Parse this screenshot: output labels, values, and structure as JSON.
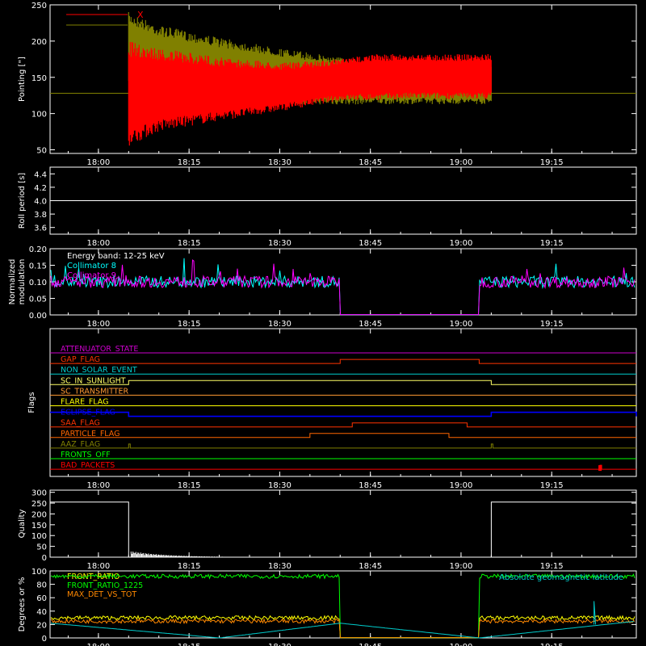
{
  "chart_data": [
    {
      "type": "line",
      "ylabel": "Pointing [\"]",
      "ylim": [
        45,
        250
      ],
      "yticks": [
        50,
        100,
        150,
        200,
        250
      ],
      "xticks": [
        "18:00",
        "18:15",
        "18:30",
        "18:45",
        "19:00",
        "19:15"
      ],
      "legend": [
        "X",
        "Y"
      ],
      "legend_placement": "top-left",
      "baseline": 128,
      "series": [
        {
          "name": "X",
          "color": "#ff0000",
          "envelope": {
            "t": [
              "18:05",
              "18:10",
              "18:20",
              "18:30",
              "18:40",
              "18:45",
              "18:52",
              "19:00",
              "19:05"
            ],
            "upper": [
              200,
              190,
              178,
              170,
              175,
              182,
              182,
              182,
              182
            ],
            "lower": [
              55,
              75,
              90,
              103,
              118,
              118,
              120,
              120,
              120
            ]
          }
        },
        {
          "name": "Y",
          "color": "#808000",
          "envelope": {
            "t": [
              "18:05",
              "18:10",
              "18:20",
              "18:30",
              "18:40",
              "18:45",
              "18:52",
              "19:00",
              "19:05"
            ],
            "upper": [
              240,
              222,
              205,
              190,
              178,
              172,
              170,
              170,
              170
            ],
            "lower": [
              130,
              120,
              115,
              113,
              112,
              113,
              113,
              113,
              113
            ]
          }
        }
      ]
    },
    {
      "type": "line",
      "ylabel": "Roll period [s]",
      "ylim": [
        3.5,
        4.5
      ],
      "yticks": [
        "3.6",
        "3.8",
        "4.0",
        "4.2",
        "4.4"
      ],
      "xticks": [
        "18:00",
        "18:15",
        "18:30",
        "18:45",
        "19:00",
        "19:15"
      ],
      "series": [
        {
          "color": "#ffffff",
          "x": [
            "17:52",
            "19:29"
          ],
          "y": [
            4.0,
            4.0
          ]
        }
      ]
    },
    {
      "type": "line",
      "ylabel": [
        "Normalized",
        "modulation"
      ],
      "ylim": [
        0,
        0.2
      ],
      "yticks": [
        "0.00",
        "0.05",
        "0.10",
        "0.15",
        "0.20"
      ],
      "xticks": [
        "18:00",
        "18:15",
        "18:30",
        "18:45",
        "19:00",
        "19:15"
      ],
      "legend_placement": "top-left",
      "annotation": "Energy band: 12-25 keV",
      "series": [
        {
          "name": "Collimator 8",
          "color": "#00ffff",
          "level": 0.1,
          "gap": [
            "18:40",
            "19:03"
          ]
        },
        {
          "name": "Collimator 9",
          "color": "#ff00ff",
          "level": 0.1,
          "gap": [
            "18:40",
            "19:03"
          ]
        }
      ]
    },
    {
      "type": "line",
      "ylabel": "Flags",
      "xticks": [
        "18:00",
        "18:15",
        "18:30",
        "18:45",
        "19:00",
        "19:15"
      ],
      "series": [
        {
          "name": "ATTENUATOR_STATE",
          "color": "#cc00cc",
          "steps": []
        },
        {
          "name": "GAP_FLAG",
          "color": "#ff3300",
          "steps": [
            [
              "18:40",
              "19:03"
            ]
          ]
        },
        {
          "name": "NON_SOLAR_EVENT",
          "color": "#00cccc",
          "steps": []
        },
        {
          "name": "SC_IN_SUNLIGHT",
          "color": "#ffff66",
          "steps": [
            [
              "18:05",
              "19:05"
            ]
          ]
        },
        {
          "name": "SC_TRANSMITTER",
          "color": "#ff9933",
          "steps": []
        },
        {
          "name": "FLARE_FLAG",
          "color": "#ffff00",
          "steps": []
        },
        {
          "name": "ECLIPSE_FLAG",
          "color": "#0000ff",
          "steps": [
            [
              "17:52",
              "18:05"
            ],
            [
              "19:05",
              "19:29"
            ]
          ]
        },
        {
          "name": "SAA_FLAG",
          "color": "#ff3300",
          "steps": [
            [
              "18:42",
              "19:01"
            ]
          ]
        },
        {
          "name": "PARTICLE_FLAG",
          "color": "#ff6600",
          "steps": [
            [
              "18:35",
              "18:58"
            ]
          ]
        },
        {
          "name": "AAZ_FLAG",
          "color": "#808000",
          "steps": [
            [
              "18:05",
              "18:05"
            ],
            [
              "19:05",
              "19:05"
            ]
          ]
        },
        {
          "name": "FRONTS_OFF",
          "color": "#00ff00",
          "steps": []
        },
        {
          "name": "BAD_PACKETS",
          "color": "#ff0000",
          "steps": [
            [
              "19:23",
              "19:23"
            ]
          ]
        }
      ]
    },
    {
      "type": "line",
      "ylabel": "Quality",
      "ylim": [
        0,
        310
      ],
      "yticks": [
        0,
        50,
        100,
        150,
        200,
        250,
        300
      ],
      "xticks": [
        "18:00",
        "18:15",
        "18:30",
        "18:45",
        "19:00",
        "19:15"
      ],
      "series": [
        {
          "color": "#ffffff",
          "x": [
            "17:52",
            "18:05",
            "18:05",
            "19:05",
            "19:05",
            "19:29"
          ],
          "y": [
            255,
            255,
            0,
            0,
            255,
            255
          ]
        }
      ]
    },
    {
      "type": "line",
      "ylabel": "Degrees or %",
      "ylim": [
        0,
        100
      ],
      "yticks": [
        0,
        20,
        40,
        60,
        80,
        100
      ],
      "xticks": [
        "18:00",
        "18:15",
        "18:30",
        "18:45",
        "19:00",
        "19:15"
      ],
      "legend_placement": "top-left",
      "annotation": "Absolute geomagnetic latitude",
      "series": [
        {
          "name": "FRONT_RATIO",
          "color": "#ffff00",
          "level": 30,
          "gap": [
            "18:40",
            "19:03"
          ]
        },
        {
          "name": "FRONT_RATIO_1225",
          "color": "#00ff00",
          "level": 92,
          "gap": [
            "18:40",
            "19:03"
          ]
        },
        {
          "name": "MAX_DET_VS_TOT",
          "color": "#ff8800",
          "level": 25,
          "gap": [
            "18:40",
            "19:03"
          ]
        },
        {
          "name": "Absolute geomagnetic latitude",
          "color": "#00cccc",
          "points": [
            [
              "17:52",
              22
            ],
            [
              "18:20",
              0
            ],
            [
              "18:40",
              22
            ],
            [
              "19:03",
              0
            ],
            [
              "19:29",
              25
            ]
          ]
        }
      ]
    }
  ]
}
